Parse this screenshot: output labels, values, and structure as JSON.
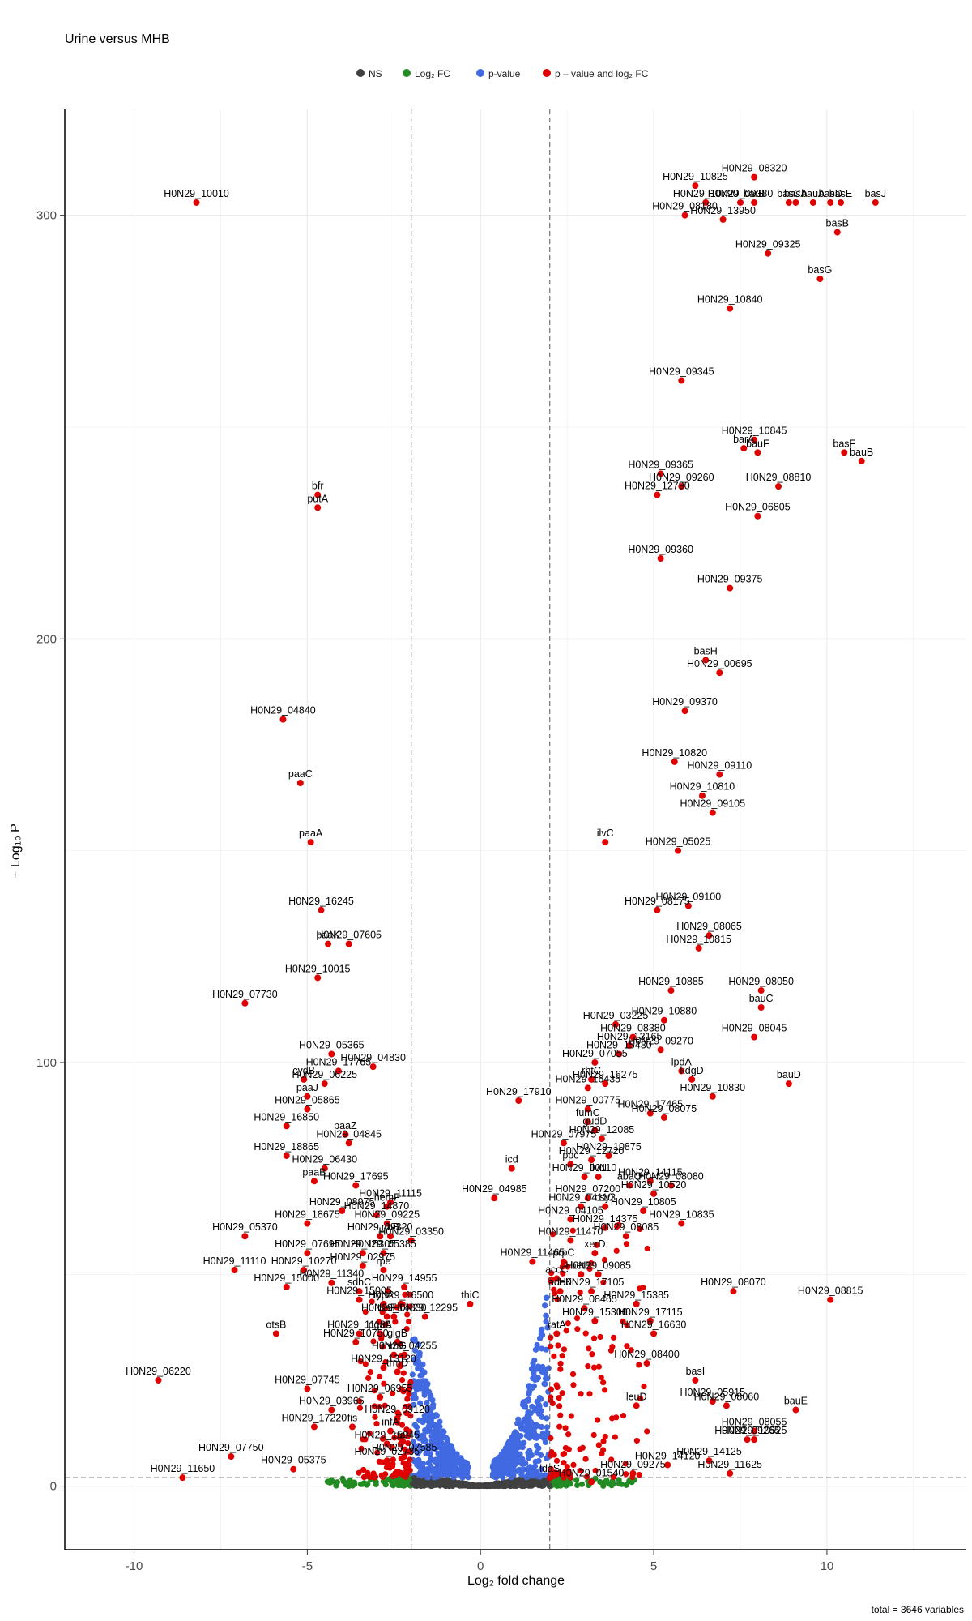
{
  "chart_data": {
    "type": "scatter",
    "title": "Urine versus MHB",
    "xlabel": "Log₂ fold change",
    "ylabel": "− Log₁₀ P",
    "caption": "total = 3646 variables",
    "xlim": [
      -12,
      14
    ],
    "ylim": [
      -15,
      325
    ],
    "x_ticks": [
      -10,
      -5,
      0,
      5,
      10
    ],
    "y_ticks": [
      0,
      100,
      200,
      300
    ],
    "grid": true,
    "legend_position": "top",
    "fc_cutoff": 2,
    "p_cutoff_y": 2,
    "colors": {
      "NS": "#404040",
      "Log2 FC": "#228b22",
      "p-value": "#4169e1",
      "p-value and log2 FC": "#e00000"
    },
    "legend": [
      {
        "key": "NS",
        "label": "NS"
      },
      {
        "key": "Log2 FC",
        "label": "Log₂ FC"
      },
      {
        "key": "p-value",
        "label": "p-value"
      },
      {
        "key": "p-value and log2 FC",
        "label": "p – value and log₂ FC"
      }
    ],
    "highlighted_points": [
      {
        "label": "H0N29_10010",
        "x": -8.2,
        "y": 303
      },
      {
        "label": "H0N29_10825",
        "x": 6.2,
        "y": 307
      },
      {
        "label": "H0N29_08320",
        "x": 7.9,
        "y": 309
      },
      {
        "label": "H0N29_10790",
        "x": 6.5,
        "y": 303
      },
      {
        "label": "H0N29_09380",
        "x": 7.5,
        "y": 303
      },
      {
        "label": "basA",
        "x": 9.1,
        "y": 303
      },
      {
        "label": "basD",
        "x": 10.1,
        "y": 303
      },
      {
        "label": "basJ",
        "x": 11.4,
        "y": 303
      },
      {
        "label": "barB",
        "x": 7.9,
        "y": 303
      },
      {
        "label": "basC",
        "x": 8.9,
        "y": 303
      },
      {
        "label": "bauA",
        "x": 9.6,
        "y": 303
      },
      {
        "label": "basE",
        "x": 10.4,
        "y": 303
      },
      {
        "label": "H0N29_08180",
        "x": 5.9,
        "y": 300
      },
      {
        "label": "H0N29_13950",
        "x": 7.0,
        "y": 299
      },
      {
        "label": "basB",
        "x": 10.3,
        "y": 296
      },
      {
        "label": "H0N29_09325",
        "x": 8.3,
        "y": 291
      },
      {
        "label": "basG",
        "x": 9.8,
        "y": 285
      },
      {
        "label": "H0N29_10840",
        "x": 7.2,
        "y": 278
      },
      {
        "label": "H0N29_09345",
        "x": 5.8,
        "y": 261
      },
      {
        "label": "H0N29_10845",
        "x": 7.9,
        "y": 247
      },
      {
        "label": "barA",
        "x": 7.6,
        "y": 245
      },
      {
        "label": "bauF",
        "x": 8.0,
        "y": 244
      },
      {
        "label": "basF",
        "x": 10.5,
        "y": 244
      },
      {
        "label": "bauB",
        "x": 11.0,
        "y": 242
      },
      {
        "label": "H0N29_09365",
        "x": 5.2,
        "y": 239
      },
      {
        "label": "H0N29_09260",
        "x": 5.8,
        "y": 236
      },
      {
        "label": "H0N29_08810",
        "x": 8.6,
        "y": 236
      },
      {
        "label": "H0N29_12790",
        "x": 5.1,
        "y": 234
      },
      {
        "label": "H0N29_06805",
        "x": 8.0,
        "y": 229
      },
      {
        "label": "bfr",
        "x": -4.7,
        "y": 234
      },
      {
        "label": "putA",
        "x": -4.7,
        "y": 231
      },
      {
        "label": "H0N29_09360",
        "x": 5.2,
        "y": 219
      },
      {
        "label": "H0N29_09375",
        "x": 7.2,
        "y": 212
      },
      {
        "label": "basH",
        "x": 6.5,
        "y": 195
      },
      {
        "label": "H0N29_00695",
        "x": 6.9,
        "y": 192
      },
      {
        "label": "H0N29_04840",
        "x": -5.7,
        "y": 181
      },
      {
        "label": "H0N29_09370",
        "x": 5.9,
        "y": 183
      },
      {
        "label": "H0N29_10820",
        "x": 5.6,
        "y": 171
      },
      {
        "label": "H0N29_09110",
        "x": 6.9,
        "y": 168
      },
      {
        "label": "paaC",
        "x": -5.2,
        "y": 166
      },
      {
        "label": "H0N29_10810",
        "x": 6.4,
        "y": 163
      },
      {
        "label": "H0N29_09105",
        "x": 6.7,
        "y": 159
      },
      {
        "label": "paaA",
        "x": -4.9,
        "y": 152
      },
      {
        "label": "ilvC",
        "x": 3.6,
        "y": 152
      },
      {
        "label": "H0N29_05025",
        "x": 5.7,
        "y": 150
      },
      {
        "label": "H0N29_16245",
        "x": -4.6,
        "y": 136
      },
      {
        "label": "H0N29_09100",
        "x": 6.0,
        "y": 137
      },
      {
        "label": "H0N29_08175",
        "x": 5.1,
        "y": 136
      },
      {
        "label": "H0N29_08065",
        "x": 6.6,
        "y": 130
      },
      {
        "label": "paaK",
        "x": -4.4,
        "y": 128
      },
      {
        "label": "H0N29_07605",
        "x": -3.8,
        "y": 128
      },
      {
        "label": "H0N29_10815",
        "x": 6.3,
        "y": 127
      },
      {
        "label": "H0N29_10015",
        "x": -4.7,
        "y": 120
      },
      {
        "label": "H0N29_07730",
        "x": -6.8,
        "y": 114
      },
      {
        "label": "H0N29_10885",
        "x": 5.5,
        "y": 117
      },
      {
        "label": "H0N29_08050",
        "x": 8.1,
        "y": 117
      },
      {
        "label": "H0N29_03225",
        "x": 3.9,
        "y": 109
      },
      {
        "label": "H0N29_10880",
        "x": 5.3,
        "y": 110
      },
      {
        "label": "bauC",
        "x": 8.1,
        "y": 113
      },
      {
        "label": "H0N29_08380",
        "x": 4.4,
        "y": 106
      },
      {
        "label": "H0N29_08045",
        "x": 7.9,
        "y": 106
      },
      {
        "label": "H0N29_05365",
        "x": -4.3,
        "y": 102
      },
      {
        "label": "H0N29_13165",
        "x": 4.3,
        "y": 104
      },
      {
        "label": "H0N29_09270",
        "x": 5.2,
        "y": 103
      },
      {
        "label": "H0N29_15430",
        "x": 4.0,
        "y": 102
      },
      {
        "label": "H0N29_17765",
        "x": -4.1,
        "y": 98
      },
      {
        "label": "H0N29_04830",
        "x": -3.1,
        "y": 99
      },
      {
        "label": "rhtC",
        "x": 3.2,
        "y": 96
      },
      {
        "label": "H0N29_07055",
        "x": 3.3,
        "y": 100
      },
      {
        "label": "lpdA",
        "x": 5.8,
        "y": 98
      },
      {
        "label": "kdgD",
        "x": 6.1,
        "y": 96
      },
      {
        "label": "bauD",
        "x": 8.9,
        "y": 95
      },
      {
        "label": "cydB",
        "x": -5.1,
        "y": 96
      },
      {
        "label": "H0N29_06225",
        "x": -4.5,
        "y": 95
      },
      {
        "label": "H0N29_16435",
        "x": 3.1,
        "y": 94
      },
      {
        "label": "H0N29_16275",
        "x": 3.6,
        "y": 95
      },
      {
        "label": "paaJ",
        "x": -5.0,
        "y": 92
      },
      {
        "label": "H0N29_17910",
        "x": 1.1,
        "y": 91
      },
      {
        "label": "H0N29_10830",
        "x": 6.7,
        "y": 92
      },
      {
        "label": "H0N29_00775",
        "x": 3.1,
        "y": 89
      },
      {
        "label": "H0N29_17465",
        "x": 4.9,
        "y": 88
      },
      {
        "label": "H0N29_08075",
        "x": 5.3,
        "y": 87
      },
      {
        "label": "H0N29_05865",
        "x": -5.0,
        "y": 89
      },
      {
        "label": "H0N29_16850",
        "x": -5.6,
        "y": 85
      },
      {
        "label": "paaZ",
        "x": -3.9,
        "y": 83
      },
      {
        "label": "fumC",
        "x": 3.1,
        "y": 86
      },
      {
        "label": "gudD",
        "x": 3.3,
        "y": 84
      },
      {
        "label": "H0N29_04845",
        "x": -3.8,
        "y": 81
      },
      {
        "label": "H0N29_07975",
        "x": 2.4,
        "y": 81
      },
      {
        "label": "H0N29_12085",
        "x": 3.5,
        "y": 82
      },
      {
        "label": "H0N29_18865",
        "x": -5.6,
        "y": 78
      },
      {
        "label": "H0N29_12720",
        "x": 3.2,
        "y": 77
      },
      {
        "label": "H0N29_10875",
        "x": 3.7,
        "y": 78
      },
      {
        "label": "H0N29_06430",
        "x": -4.5,
        "y": 75
      },
      {
        "label": "icd",
        "x": 0.9,
        "y": 75
      },
      {
        "label": "ppc",
        "x": 2.6,
        "y": 76
      },
      {
        "label": "ilvN",
        "x": 3.4,
        "y": 73
      },
      {
        "label": "H0N29_00110",
        "x": 3.0,
        "y": 73
      },
      {
        "label": "H0N29_14115",
        "x": 4.9,
        "y": 72
      },
      {
        "label": "H0N29_08080",
        "x": 5.5,
        "y": 71
      },
      {
        "label": "paaB",
        "x": -4.8,
        "y": 72
      },
      {
        "label": "H0N29_17695",
        "x": -3.6,
        "y": 71
      },
      {
        "label": "abaQ",
        "x": 4.3,
        "y": 71
      },
      {
        "label": "H0N29_04985",
        "x": 0.4,
        "y": 68
      },
      {
        "label": "H0N29_07200",
        "x": 3.1,
        "y": 68
      },
      {
        "label": "H0N29_10520",
        "x": 5.0,
        "y": 69
      },
      {
        "label": "H0N29_11115",
        "x": -2.6,
        "y": 67
      },
      {
        "label": "hemF",
        "x": -2.7,
        "y": 66
      },
      {
        "label": "H0N29_04110",
        "x": 2.9,
        "y": 66
      },
      {
        "label": "csy3",
        "x": 3.6,
        "y": 66
      },
      {
        "label": "H0N29_10805",
        "x": 4.7,
        "y": 65
      },
      {
        "label": "H0N29_08975",
        "x": -4.0,
        "y": 65
      },
      {
        "label": "H0N29_14870",
        "x": -3.0,
        "y": 64
      },
      {
        "label": "H0N29_18675",
        "x": -5.0,
        "y": 62
      },
      {
        "label": "H0N29_09225",
        "x": -2.7,
        "y": 62
      },
      {
        "label": "H0N29_04105",
        "x": 2.6,
        "y": 63
      },
      {
        "label": "H0N29_14375",
        "x": 3.6,
        "y": 61
      },
      {
        "label": "H0N29_10835",
        "x": 5.8,
        "y": 62
      },
      {
        "label": "H0N29_05370",
        "x": -6.8,
        "y": 59
      },
      {
        "label": "H0N29_09320",
        "x": -2.9,
        "y": 59
      },
      {
        "label": "ribB",
        "x": -2.6,
        "y": 59
      },
      {
        "label": "H0N29_03350",
        "x": -2.0,
        "y": 58
      },
      {
        "label": "H0N29_11470",
        "x": 2.6,
        "y": 58
      },
      {
        "label": "H0N29_08085",
        "x": 4.2,
        "y": 59
      },
      {
        "label": "H0N29_07695",
        "x": -5.0,
        "y": 55
      },
      {
        "label": "H0N29_15305",
        "x": -3.4,
        "y": 55
      },
      {
        "label": "H0N29_05385",
        "x": -2.8,
        "y": 55
      },
      {
        "label": "H0N29_02975",
        "x": -3.4,
        "y": 52
      },
      {
        "label": "H0N29_11465",
        "x": 1.5,
        "y": 53
      },
      {
        "label": "prpC",
        "x": 2.4,
        "y": 53
      },
      {
        "label": "xerD",
        "x": 3.3,
        "y": 55
      },
      {
        "label": "H0N29_11110",
        "x": -7.1,
        "y": 51
      },
      {
        "label": "H0N29_10270",
        "x": -5.1,
        "y": 51
      },
      {
        "label": "rpe",
        "x": -2.8,
        "y": 51
      },
      {
        "label": "accC",
        "x": 2.2,
        "y": 49
      },
      {
        "label": "betB",
        "x": 2.9,
        "y": 50
      },
      {
        "label": "H0N29_09085",
        "x": 3.4,
        "y": 50
      },
      {
        "label": "H0N29_11340",
        "x": -4.3,
        "y": 48
      },
      {
        "label": "H0N29_15000",
        "x": -5.6,
        "y": 47
      },
      {
        "label": "sdhC",
        "x": -3.5,
        "y": 46
      },
      {
        "label": "H0N29_14955",
        "x": -2.2,
        "y": 47
      },
      {
        "label": "adeK",
        "x": 2.3,
        "y": 46
      },
      {
        "label": "H0N29_17105",
        "x": 3.2,
        "y": 46
      },
      {
        "label": "H0N29_08070",
        "x": 7.3,
        "y": 46
      },
      {
        "label": "H0N29_15005",
        "x": -3.5,
        "y": 44
      },
      {
        "label": "typA",
        "x": -2.8,
        "y": 43
      },
      {
        "label": "H0N29_16500",
        "x": -2.3,
        "y": 43
      },
      {
        "label": "thiC",
        "x": -0.3,
        "y": 43
      },
      {
        "label": "H0N29_08465",
        "x": 3.0,
        "y": 42
      },
      {
        "label": "H0N29_15385",
        "x": 4.5,
        "y": 43
      },
      {
        "label": "H0N29_08815",
        "x": 10.1,
        "y": 44
      },
      {
        "label": "tssF",
        "x": -2.7,
        "y": 40
      },
      {
        "label": "H0N29_14830",
        "x": -2.5,
        "y": 40
      },
      {
        "label": "H0N29_12295",
        "x": -1.6,
        "y": 40
      },
      {
        "label": "H0N29_15300",
        "x": 3.3,
        "y": 39
      },
      {
        "label": "H0N29_17115",
        "x": 4.9,
        "y": 39
      },
      {
        "label": "pgaA",
        "x": -2.9,
        "y": 36
      },
      {
        "label": "H0N29_11105",
        "x": -3.5,
        "y": 36
      },
      {
        "label": "ratA",
        "x": 2.2,
        "y": 36
      },
      {
        "label": "otsB",
        "x": -5.9,
        "y": 36
      },
      {
        "label": "glgB",
        "x": -2.4,
        "y": 34
      },
      {
        "label": "H0N29_10750",
        "x": -3.6,
        "y": 34
      },
      {
        "label": "H0N29_16630",
        "x": 5.0,
        "y": 36
      },
      {
        "label": "rhmG",
        "x": -2.5,
        "y": 31
      },
      {
        "label": "H0N29_04255",
        "x": -2.2,
        "y": 31
      },
      {
        "label": "H0N29_08400",
        "x": 4.8,
        "y": 29
      },
      {
        "label": "H0N29_13120",
        "x": -2.8,
        "y": 28
      },
      {
        "label": "trmD",
        "x": -2.4,
        "y": 27
      },
      {
        "label": "H0N29_06220",
        "x": -9.3,
        "y": 25
      },
      {
        "label": "basI",
        "x": 6.2,
        "y": 25
      },
      {
        "label": "H0N29_07745",
        "x": -5.0,
        "y": 23
      },
      {
        "label": "H0N29_06955",
        "x": -2.9,
        "y": 21
      },
      {
        "label": "H0N29_05915",
        "x": 6.7,
        "y": 20
      },
      {
        "label": "leuD",
        "x": 4.5,
        "y": 19
      },
      {
        "label": "H0N29_03965",
        "x": -4.3,
        "y": 18
      },
      {
        "label": "H0N29_08060",
        "x": 7.1,
        "y": 19
      },
      {
        "label": "bauE",
        "x": 9.1,
        "y": 18
      },
      {
        "label": "H0N29_09120",
        "x": -2.4,
        "y": 16
      },
      {
        "label": "fis",
        "x": -3.7,
        "y": 14
      },
      {
        "label": "infA",
        "x": -2.6,
        "y": 13
      },
      {
        "label": "H0N29_17220",
        "x": -4.8,
        "y": 14
      },
      {
        "label": "H0N29_08055",
        "x": 7.9,
        "y": 13
      },
      {
        "label": "rraf",
        "x": -2.3,
        "y": 10
      },
      {
        "label": "H0N29_15945",
        "x": -2.7,
        "y": 10
      },
      {
        "label": "H0N29_09265",
        "x": 7.7,
        "y": 11
      },
      {
        "label": "H0N29_10525",
        "x": 7.9,
        "y": 11
      },
      {
        "label": "H0N29_07750",
        "x": -7.2,
        "y": 7
      },
      {
        "label": "H0N29_07585",
        "x": -2.2,
        "y": 7
      },
      {
        "label": "H0N29_02735",
        "x": -2.7,
        "y": 6
      },
      {
        "label": "H0N29_14120",
        "x": 5.4,
        "y": 5
      },
      {
        "label": "H0N29_14125",
        "x": 6.6,
        "y": 6
      },
      {
        "label": "H0N29_11650",
        "x": -8.6,
        "y": 2
      },
      {
        "label": "H0N29_05375",
        "x": -5.4,
        "y": 4
      },
      {
        "label": "H0N29_09275",
        "x": 4.4,
        "y": 3
      },
      {
        "label": "H0N29_11625",
        "x": 7.2,
        "y": 3
      },
      {
        "label": "ldaS",
        "x": 2.0,
        "y": 2
      },
      {
        "label": "H0N29_01540",
        "x": 3.2,
        "y": 1
      }
    ]
  }
}
